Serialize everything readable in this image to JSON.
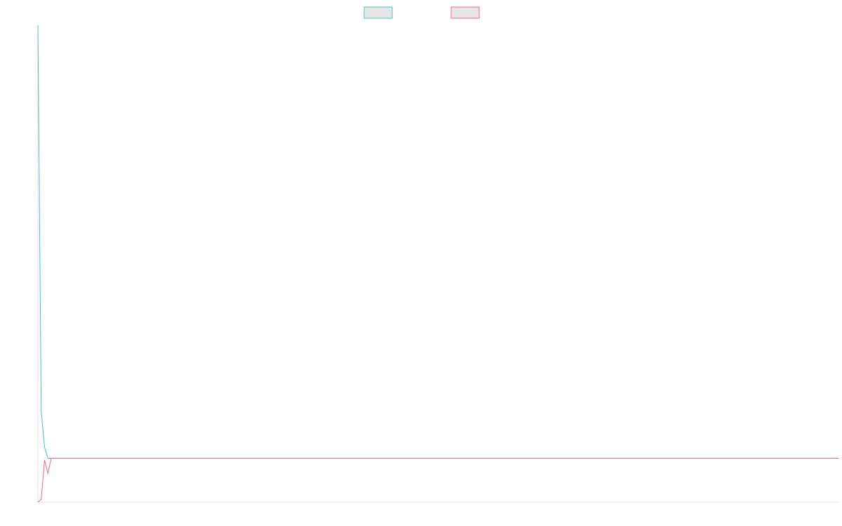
{
  "chart_data": {
    "type": "line",
    "title": "",
    "xlabel": "",
    "ylabel": "",
    "grid": false,
    "legend": "top-center",
    "x": [
      0,
      1,
      2,
      3,
      4,
      5,
      6,
      7,
      8,
      9,
      10,
      20,
      40,
      60,
      80,
      100,
      120,
      140,
      160,
      180,
      200,
      220,
      240
    ],
    "xlim": [
      0,
      240
    ],
    "ylim": [
      0,
      100
    ],
    "series": [
      {
        "color": "#4bc0c0",
        "values": [
          100,
          19,
          11.5,
          9.2,
          9.2,
          9.2,
          9.2,
          9.2,
          9.2,
          9.2,
          9.2,
          9.2,
          9.2,
          9.2,
          9.2,
          9.2,
          9.2,
          9.2,
          9.2,
          9.2,
          9.2,
          9.2,
          9.2
        ]
      },
      {
        "color": "#ff6384",
        "values": [
          0,
          0.6,
          8.8,
          6,
          9.2,
          9.2,
          9.2,
          9.2,
          9.2,
          9.2,
          9.2,
          9.2,
          9.2,
          9.2,
          9.2,
          9.2,
          9.2,
          9.2,
          9.2,
          9.2,
          9.2,
          9.2,
          9.2
        ]
      }
    ]
  }
}
